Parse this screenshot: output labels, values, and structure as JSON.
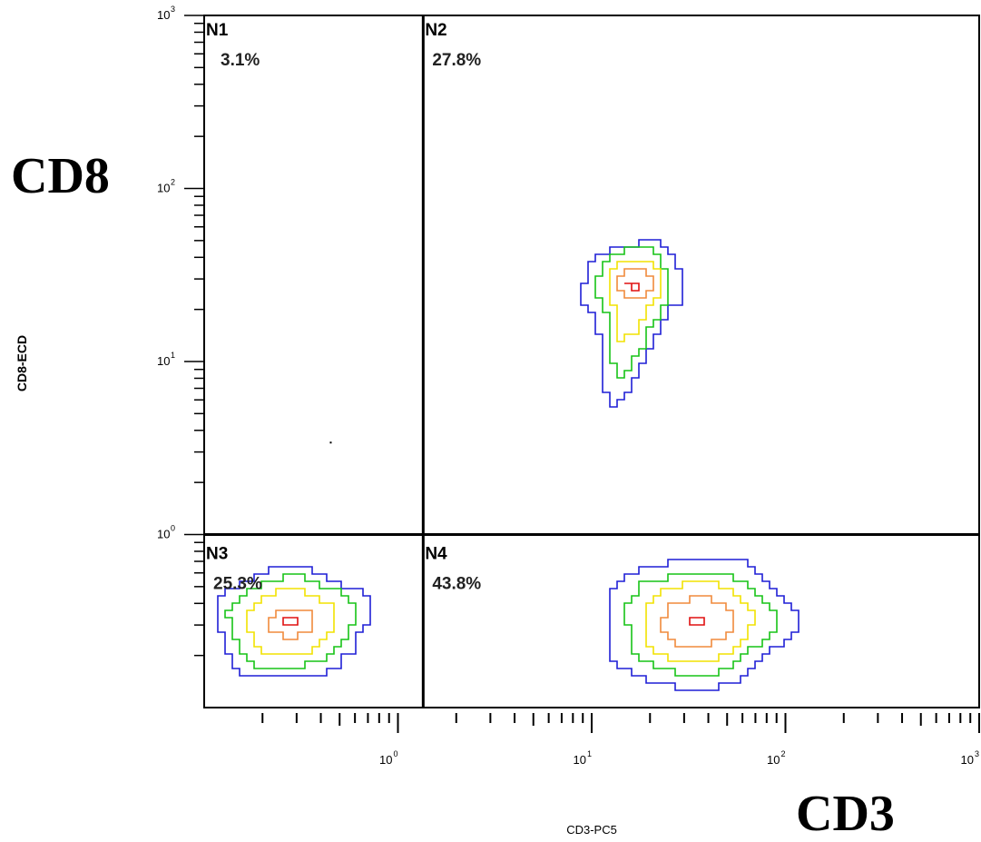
{
  "chart_data": {
    "type": "scatter",
    "subtype": "flow-cytometry-contour",
    "xlabel": "CD3-PC5",
    "ylabel": "CD8-ECD",
    "overlay_labels": {
      "x": "CD3",
      "y": "CD8"
    },
    "x_scale": "log",
    "y_scale": "log",
    "xlim": [
      0.1,
      1000
    ],
    "ylim": [
      0.1,
      1000
    ],
    "x_ticks": [
      {
        "base": "10",
        "exp": "0",
        "value": 1
      },
      {
        "base": "10",
        "exp": "1",
        "value": 10
      },
      {
        "base": "10",
        "exp": "2",
        "value": 100
      },
      {
        "base": "10",
        "exp": "3",
        "value": 1000
      }
    ],
    "y_ticks": [
      {
        "base": "10",
        "exp": "0",
        "value": 1
      },
      {
        "base": "10",
        "exp": "1",
        "value": 10
      },
      {
        "base": "10",
        "exp": "2",
        "value": 100
      },
      {
        "base": "10",
        "exp": "3",
        "value": 1000
      }
    ],
    "gates": {
      "x": 1.35,
      "y": 1.0
    },
    "quadrants": [
      {
        "name": "N1",
        "percent": "3.1%",
        "position": "upper-left"
      },
      {
        "name": "N2",
        "percent": "27.8%",
        "position": "upper-right"
      },
      {
        "name": "N3",
        "percent": "25.3%",
        "position": "lower-left"
      },
      {
        "name": "N4",
        "percent": "43.8%",
        "position": "lower-right"
      }
    ],
    "contour_colors": [
      "#1f1fd6",
      "#17c317",
      "#f2e200",
      "#f08a3c",
      "#e01010"
    ],
    "populations": [
      {
        "quadrant": "N2",
        "peak": [
          16.5,
          28
        ],
        "log_halfwidths": [
          [
            0.26,
            0.24
          ],
          [
            0.19,
            0.21
          ],
          [
            0.14,
            0.15
          ],
          [
            0.09,
            0.08
          ],
          [
            0.03,
            0.02
          ]
        ],
        "tail_down": 0.45
      },
      {
        "quadrant": "N3",
        "peak": [
          0.28,
          0.31
        ],
        "log_halfwidths": [
          [
            0.39,
            0.32
          ],
          [
            0.32,
            0.26
          ],
          [
            0.23,
            0.19
          ],
          [
            0.12,
            0.08
          ],
          [
            0.05,
            0.03
          ]
        ],
        "tail_down": 0
      },
      {
        "quadrant": "N4",
        "peak": [
          35,
          0.31
        ],
        "log_halfwidths": [
          [
            0.48,
            0.38
          ],
          [
            0.38,
            0.3
          ],
          [
            0.28,
            0.23
          ],
          [
            0.18,
            0.14
          ],
          [
            0.03,
            0.03
          ]
        ],
        "tail_down": 0
      }
    ],
    "stray_events": [
      [
        0.45,
        3.4
      ]
    ]
  }
}
